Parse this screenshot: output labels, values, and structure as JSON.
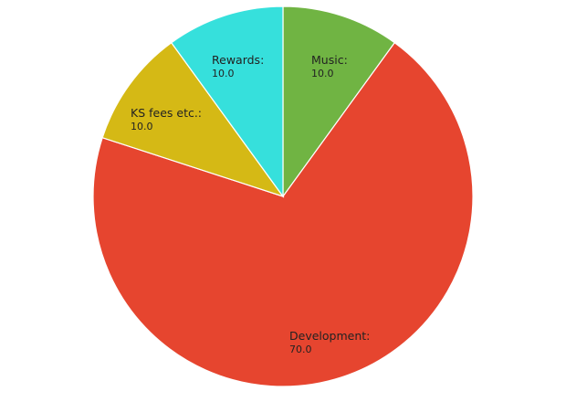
{
  "chart_data": {
    "type": "pie",
    "start": "top",
    "direction": "clockwise",
    "slices": [
      {
        "label": "Music:",
        "value": 10.0,
        "value_text": "10.0",
        "color": "#70b443"
      },
      {
        "label": "Development:",
        "value": 70.0,
        "value_text": "70.0",
        "color": "#e6452f"
      },
      {
        "label": "KS fees etc.:",
        "value": 10.0,
        "value_text": "10.0",
        "color": "#d5b915"
      },
      {
        "label": "Rewards:",
        "value": 10.0,
        "value_text": "10.0",
        "color": "#36e0dc"
      }
    ],
    "slice_border_color": "#ffffff"
  }
}
